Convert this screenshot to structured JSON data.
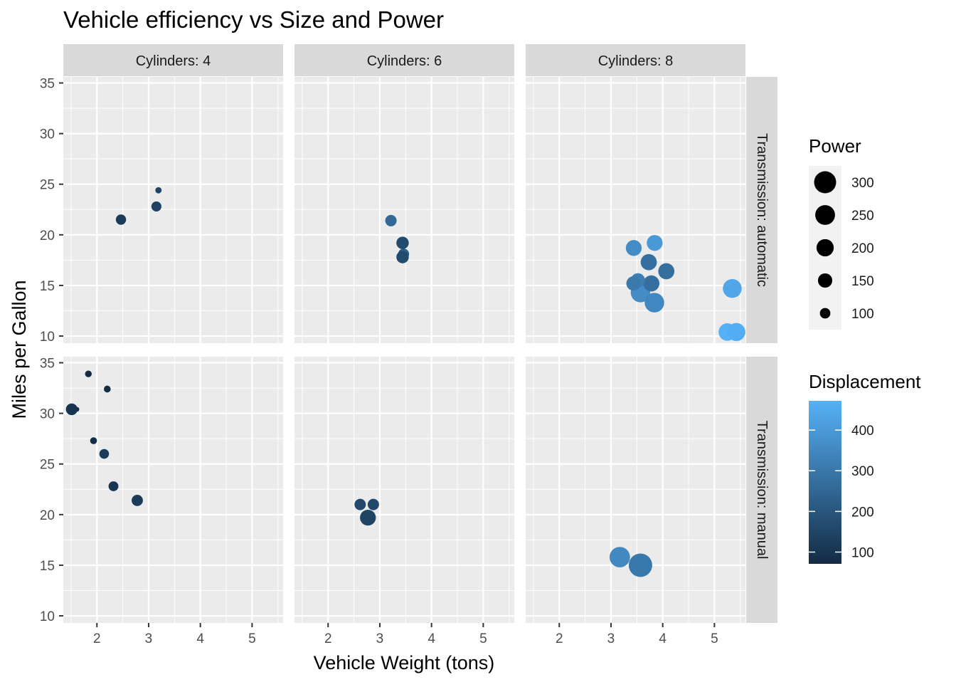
{
  "chart_data": {
    "type": "scatter",
    "title": "Vehicle efficiency vs Size and Power",
    "xlabel": "Vehicle Weight (tons)",
    "ylabel": "Miles per Gallon",
    "xlim": [
      1.35,
      5.6
    ],
    "ylim": [
      9.3,
      35.6
    ],
    "x_ticks": [
      2,
      3,
      4,
      5
    ],
    "y_ticks": [
      10,
      15,
      20,
      25,
      30,
      35
    ],
    "grid": true,
    "colors": {
      "panel_bg": "#EBEBEB",
      "grid": "#FFFFFF",
      "strip_bg": "#D9D9D9",
      "low": "#132B43",
      "high": "#56B1F7",
      "size_legend_point": "#000000"
    },
    "facet_columns": [
      {
        "cylinders": 4,
        "label": "Cylinders: 4"
      },
      {
        "cylinders": 6,
        "label": "Cylinders: 6"
      },
      {
        "cylinders": 8,
        "label": "Cylinders: 8"
      }
    ],
    "facet_rows": [
      {
        "transmission": "automatic",
        "label": "Transmission: automatic"
      },
      {
        "transmission": "manual",
        "label": "Transmission: manual"
      }
    ],
    "size_legend": {
      "title": "Power",
      "range": [
        52,
        335
      ],
      "breaks": [
        300,
        250,
        200,
        150,
        100
      ]
    },
    "color_legend": {
      "title": "Displacement",
      "range": [
        71.1,
        472
      ],
      "breaks": [
        400,
        300,
        200,
        100
      ]
    },
    "points": [
      {
        "cyl": 4,
        "trans": "automatic",
        "wt": 3.19,
        "mpg": 24.4,
        "hp": 62,
        "disp": 146.7
      },
      {
        "cyl": 4,
        "trans": "automatic",
        "wt": 3.15,
        "mpg": 22.8,
        "hp": 95,
        "disp": 140.8
      },
      {
        "cyl": 4,
        "trans": "automatic",
        "wt": 2.465,
        "mpg": 21.5,
        "hp": 97,
        "disp": 120.1
      },
      {
        "cyl": 6,
        "trans": "automatic",
        "wt": 3.215,
        "mpg": 21.4,
        "hp": 110,
        "disp": 258
      },
      {
        "cyl": 6,
        "trans": "automatic",
        "wt": 3.46,
        "mpg": 18.1,
        "hp": 105,
        "disp": 225
      },
      {
        "cyl": 6,
        "trans": "automatic",
        "wt": 3.44,
        "mpg": 19.2,
        "hp": 123,
        "disp": 167.6
      },
      {
        "cyl": 6,
        "trans": "automatic",
        "wt": 3.44,
        "mpg": 17.8,
        "hp": 123,
        "disp": 167.6
      },
      {
        "cyl": 8,
        "trans": "automatic",
        "wt": 3.44,
        "mpg": 18.7,
        "hp": 175,
        "disp": 360
      },
      {
        "cyl": 8,
        "trans": "automatic",
        "wt": 3.57,
        "mpg": 14.3,
        "hp": 245,
        "disp": 360
      },
      {
        "cyl": 8,
        "trans": "automatic",
        "wt": 4.07,
        "mpg": 16.4,
        "hp": 180,
        "disp": 275.8
      },
      {
        "cyl": 8,
        "trans": "automatic",
        "wt": 3.73,
        "mpg": 17.3,
        "hp": 180,
        "disp": 275.8
      },
      {
        "cyl": 8,
        "trans": "automatic",
        "wt": 3.78,
        "mpg": 15.2,
        "hp": 180,
        "disp": 275.8
      },
      {
        "cyl": 8,
        "trans": "automatic",
        "wt": 5.25,
        "mpg": 10.4,
        "hp": 205,
        "disp": 472
      },
      {
        "cyl": 8,
        "trans": "automatic",
        "wt": 5.424,
        "mpg": 10.4,
        "hp": 215,
        "disp": 460
      },
      {
        "cyl": 8,
        "trans": "automatic",
        "wt": 5.345,
        "mpg": 14.7,
        "hp": 230,
        "disp": 440
      },
      {
        "cyl": 8,
        "trans": "automatic",
        "wt": 3.52,
        "mpg": 15.5,
        "hp": 150,
        "disp": 318
      },
      {
        "cyl": 8,
        "trans": "automatic",
        "wt": 3.435,
        "mpg": 15.2,
        "hp": 150,
        "disp": 304
      },
      {
        "cyl": 8,
        "trans": "automatic",
        "wt": 3.84,
        "mpg": 13.3,
        "hp": 245,
        "disp": 350
      },
      {
        "cyl": 8,
        "trans": "automatic",
        "wt": 3.845,
        "mpg": 19.2,
        "hp": 175,
        "disp": 400
      },
      {
        "cyl": 4,
        "trans": "manual",
        "wt": 2.32,
        "mpg": 22.8,
        "hp": 93,
        "disp": 108
      },
      {
        "cyl": 4,
        "trans": "manual",
        "wt": 2.2,
        "mpg": 32.4,
        "hp": 66,
        "disp": 78.7
      },
      {
        "cyl": 4,
        "trans": "manual",
        "wt": 1.615,
        "mpg": 30.4,
        "hp": 52,
        "disp": 75.7
      },
      {
        "cyl": 4,
        "trans": "manual",
        "wt": 1.835,
        "mpg": 33.9,
        "hp": 65,
        "disp": 71.1
      },
      {
        "cyl": 4,
        "trans": "manual",
        "wt": 1.935,
        "mpg": 27.3,
        "hp": 66,
        "disp": 79
      },
      {
        "cyl": 4,
        "trans": "manual",
        "wt": 2.14,
        "mpg": 26.0,
        "hp": 91,
        "disp": 120.3
      },
      {
        "cyl": 4,
        "trans": "manual",
        "wt": 1.513,
        "mpg": 30.4,
        "hp": 113,
        "disp": 95.1
      },
      {
        "cyl": 4,
        "trans": "manual",
        "wt": 2.78,
        "mpg": 21.4,
        "hp": 109,
        "disp": 121
      },
      {
        "cyl": 6,
        "trans": "manual",
        "wt": 2.62,
        "mpg": 21.0,
        "hp": 110,
        "disp": 160
      },
      {
        "cyl": 6,
        "trans": "manual",
        "wt": 2.875,
        "mpg": 21.0,
        "hp": 110,
        "disp": 160
      },
      {
        "cyl": 6,
        "trans": "manual",
        "wt": 2.77,
        "mpg": 19.7,
        "hp": 175,
        "disp": 145
      },
      {
        "cyl": 8,
        "trans": "manual",
        "wt": 3.17,
        "mpg": 15.8,
        "hp": 264,
        "disp": 351
      },
      {
        "cyl": 8,
        "trans": "manual",
        "wt": 3.57,
        "mpg": 15.0,
        "hp": 335,
        "disp": 301
      }
    ]
  }
}
